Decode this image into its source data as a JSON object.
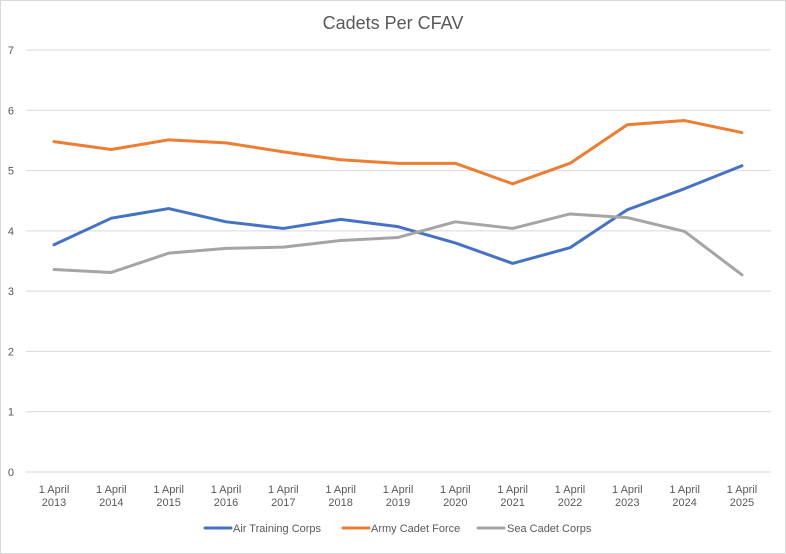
{
  "chart_data": {
    "type": "line",
    "title": "Cadets Per CFAV",
    "xlabel": "",
    "ylabel": "",
    "ylim": [
      0,
      7
    ],
    "yticks": [
      "0",
      "1",
      "2",
      "3",
      "4",
      "5",
      "6",
      "7"
    ],
    "categories": [
      [
        "1 April",
        "2013"
      ],
      [
        "1 April",
        "2014"
      ],
      [
        "1 April",
        "2015"
      ],
      [
        "1 April",
        "2016"
      ],
      [
        "1 April",
        "2017"
      ],
      [
        "1 April",
        "2018"
      ],
      [
        "1 April",
        "2019"
      ],
      [
        "1 April",
        "2020"
      ],
      [
        "1 April",
        "2021"
      ],
      [
        "1 April",
        "2022"
      ],
      [
        "1 April",
        "2023"
      ],
      [
        "1 April",
        "2024"
      ],
      [
        "1 April",
        "2025"
      ]
    ],
    "grid": true,
    "legend_position": "bottom",
    "series": [
      {
        "name": "Air Training Corps",
        "color": "#4472C4",
        "values": [
          3.77,
          4.21,
          4.37,
          4.15,
          4.04,
          4.19,
          4.07,
          3.8,
          3.46,
          3.72,
          4.35,
          4.7,
          5.08
        ]
      },
      {
        "name": "Army Cadet Force",
        "color": "#ED7D31",
        "values": [
          5.48,
          5.35,
          5.51,
          5.46,
          5.31,
          5.18,
          5.12,
          5.12,
          4.78,
          5.12,
          5.76,
          5.83,
          5.63
        ]
      },
      {
        "name": "Sea Cadet Corps",
        "color": "#A5A5A5",
        "values": [
          3.36,
          3.31,
          3.63,
          3.71,
          3.73,
          3.84,
          3.89,
          4.15,
          4.04,
          4.28,
          4.22,
          3.99,
          3.27
        ]
      }
    ]
  }
}
